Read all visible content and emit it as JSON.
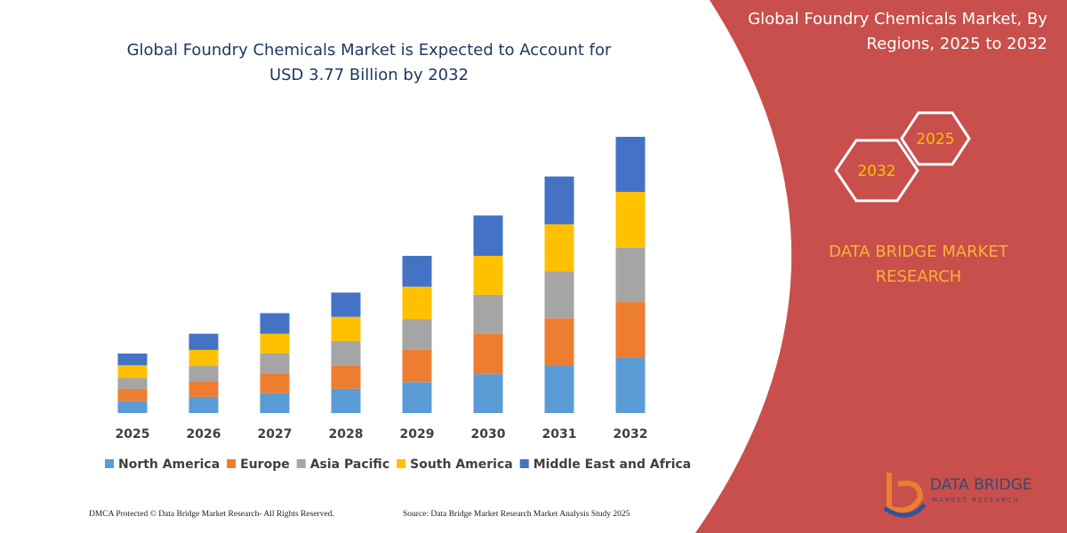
{
  "chart_data": {
    "type": "stacked_bar",
    "title": "Global Foundry Chemicals Market is Expected to Account for USD 3.77 Billion by 2032",
    "categories": [
      "2025",
      "2026",
      "2027",
      "2028",
      "2029",
      "2030",
      "2031",
      "2032"
    ],
    "series": [
      {
        "name": "North America",
        "color": "#5b9bd5",
        "values": [
          0.16,
          0.22,
          0.27,
          0.33,
          0.42,
          0.53,
          0.64,
          0.75
        ]
      },
      {
        "name": "Europe",
        "color": "#ed7d31",
        "values": [
          0.17,
          0.21,
          0.27,
          0.32,
          0.44,
          0.55,
          0.65,
          0.76
        ]
      },
      {
        "name": "Asia Pacific",
        "color": "#a5a5a5",
        "values": [
          0.15,
          0.21,
          0.27,
          0.33,
          0.42,
          0.53,
          0.64,
          0.74
        ]
      },
      {
        "name": "South America",
        "color": "#ffc000",
        "values": [
          0.17,
          0.22,
          0.27,
          0.33,
          0.44,
          0.53,
          0.64,
          0.76
        ]
      },
      {
        "name": "Middle East and Africa",
        "color": "#4472c4",
        "values": [
          0.16,
          0.22,
          0.28,
          0.33,
          0.42,
          0.55,
          0.65,
          0.75
        ]
      }
    ],
    "legend": "bottom"
  },
  "panel": {
    "title": "Global Foundry Chemicals Market, By Regions, 2025 to 2032",
    "hexagons": [
      "2032",
      "2025"
    ],
    "brand": "DATA BRIDGE MARKET RESEARCH",
    "logo": "DATA BRIDGE",
    "logo_sub": "MARKET RESEARCH"
  },
  "footer": {
    "left": "DMCA Protected © Data Bridge Market Research- All Rights Reserved.",
    "right": "Source: Data Bridge Market Research Market Analysis Study 2025"
  }
}
